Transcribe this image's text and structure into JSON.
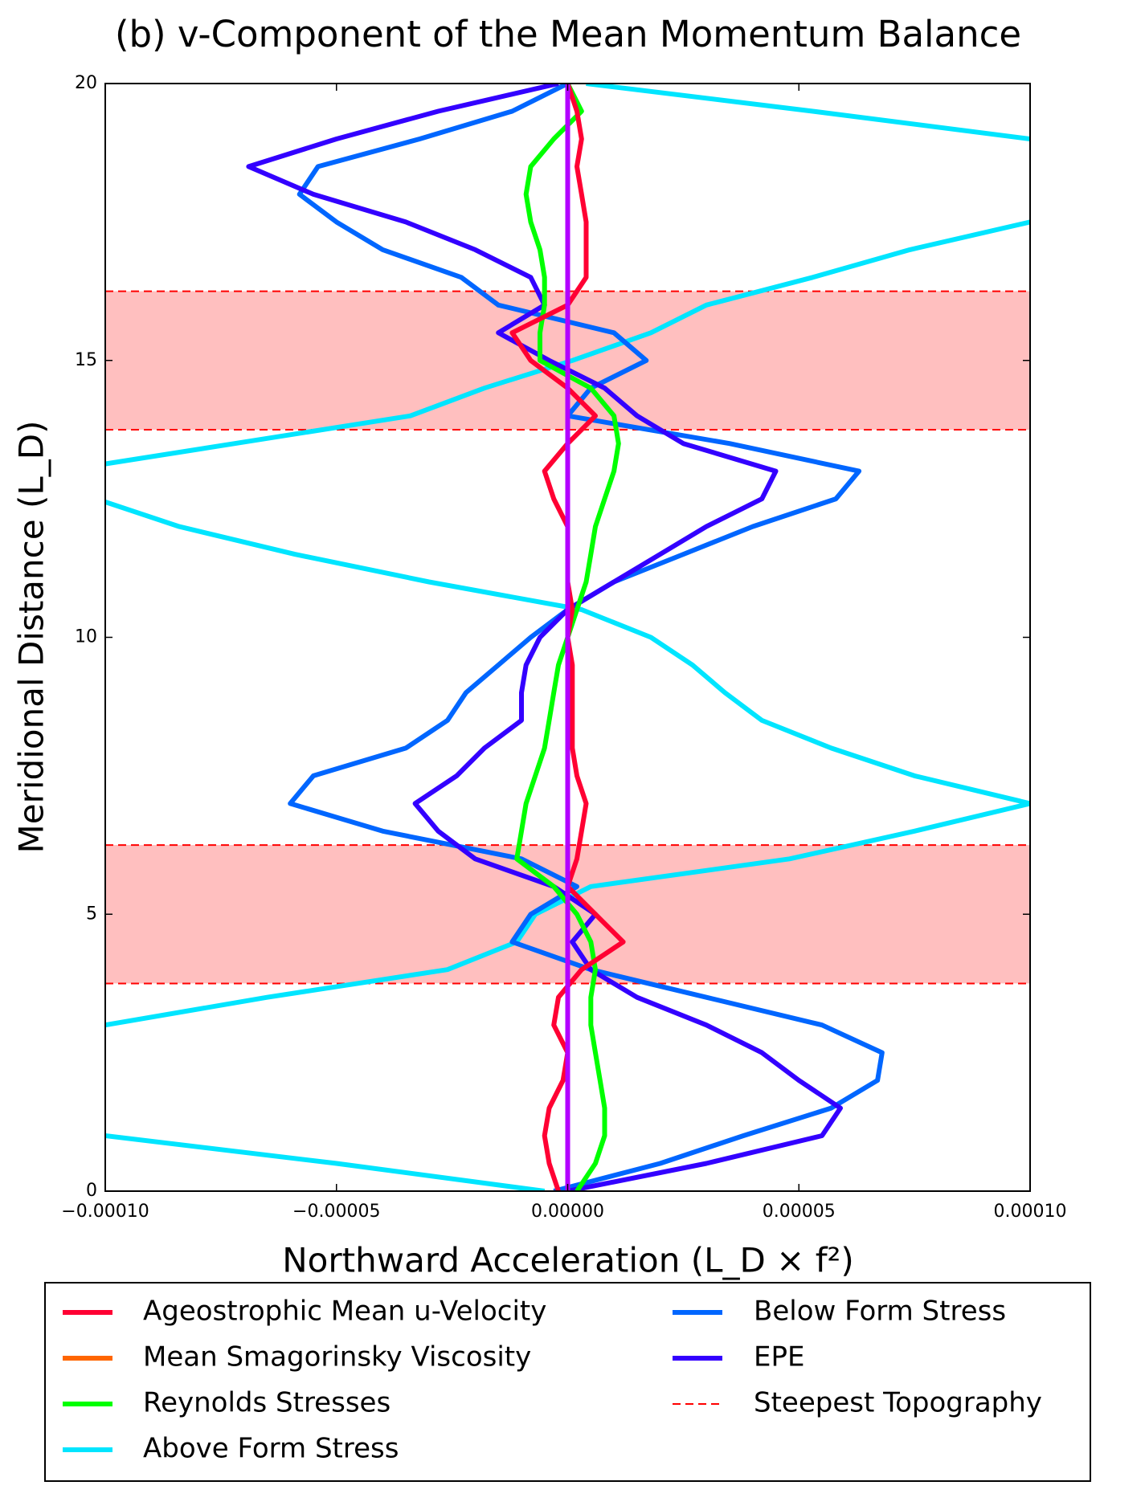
{
  "chart_data": {
    "type": "line",
    "orientation": "horizontal",
    "title": "(b) v-Component of the Mean Momentum Balance",
    "x_label": "Northward Acceleration (L_D × f²)",
    "y_label": "Meridional Distance (L_D)",
    "xlim": [
      -0.0001,
      0.0001
    ],
    "xticks": [
      {
        "value": -0.0001,
        "label": "−0.00010"
      },
      {
        "value": -5e-05,
        "label": "−0.00005"
      },
      {
        "value": 0,
        "label": "0.00000"
      },
      {
        "value": 5e-05,
        "label": "0.00005"
      },
      {
        "value": 0.0001,
        "label": "0.00010"
      }
    ],
    "ylim": [
      0,
      20
    ],
    "yticks": [
      0,
      5,
      10,
      15,
      20
    ],
    "y": [
      0,
      0.5,
      1,
      1.5,
      2,
      2.5,
      3,
      3.5,
      4,
      4.5,
      5,
      5.5,
      6,
      6.5,
      7,
      7.5,
      8,
      8.5,
      9,
      9.5,
      10,
      10.5,
      11,
      11.5,
      12,
      12.5,
      13,
      13.5,
      14,
      14.5,
      15,
      15.5,
      16,
      16.5,
      17,
      17.5,
      18,
      18.5,
      19,
      19.5,
      20
    ],
    "series": [
      {
        "name": "Above Form Stress",
        "color": "#00e5ff",
        "values": [
          -5e-06,
          -5e-05,
          -0.0001,
          -0.000115,
          -0.00012,
          -0.000115,
          -0.0001,
          -6.5e-05,
          -2.6e-05,
          -1.1e-05,
          -7e-06,
          5e-06,
          4.8e-05,
          7.5e-05,
          0.0001,
          7.5e-05,
          5.7e-05,
          4.2e-05,
          3.4e-05,
          2.7e-05,
          1.8e-05,
          3e-06,
          -3e-05,
          -5.9e-05,
          -8.4e-05,
          -0.000102,
          -0.00011,
          -7.2e-05,
          -3.4e-05,
          -1.8e-05,
          1e-06,
          1.8e-05,
          3e-05,
          5.3e-05,
          7.4e-05,
          0.0001,
          0.00011,
          0.00011,
          0.0001,
          5.3e-05,
          4e-06
        ]
      },
      {
        "name": "Below Form Stress",
        "color": "#0066ff",
        "values": [
          -3e-06,
          2e-05,
          3.8e-05,
          5.7e-05,
          6.7e-05,
          6.8e-05,
          5.5e-05,
          3e-05,
          5e-06,
          -1.2e-05,
          -8e-06,
          2e-06,
          -1e-05,
          -4e-05,
          -6e-05,
          -5.5e-05,
          -3.5e-05,
          -2.6e-05,
          -2.2e-05,
          -1.5e-05,
          -8e-06,
          0,
          1e-05,
          2.5e-05,
          4e-05,
          5.8e-05,
          6.3e-05,
          3.5e-05,
          0,
          5e-06,
          1.7e-05,
          1e-05,
          -1.5e-05,
          -2.3e-05,
          -4e-05,
          -5e-05,
          -5.8e-05,
          -5.4e-05,
          -3.2e-05,
          -1.2e-05,
          0
        ]
      },
      {
        "name": "EPE",
        "color": "#3300ff",
        "values": [
          0,
          3e-05,
          5.5e-05,
          5.9e-05,
          5e-05,
          4.2e-05,
          3e-05,
          1.5e-05,
          5e-06,
          1e-06,
          6e-06,
          -3e-06,
          -2e-05,
          -2.8e-05,
          -3.3e-05,
          -2.4e-05,
          -1.8e-05,
          -1e-05,
          -1e-05,
          -9e-06,
          -6e-06,
          0,
          1e-05,
          2e-05,
          3e-05,
          4.2e-05,
          4.5e-05,
          2.5e-05,
          1.5e-05,
          8e-06,
          -4e-06,
          -1.5e-05,
          -5e-06,
          -8e-06,
          -2e-05,
          -3.5e-05,
          -5.5e-05,
          -6.9e-05,
          -5e-05,
          -2.8e-05,
          -2e-06
        ]
      },
      {
        "name": "Reynolds Stresses",
        "color": "#00ff00",
        "values": [
          2e-06,
          6e-06,
          8e-06,
          8e-06,
          7e-06,
          6e-06,
          5e-06,
          5e-06,
          6e-06,
          5e-06,
          2e-06,
          -3e-06,
          -1.1e-05,
          -1e-05,
          -9e-06,
          -7e-06,
          -5e-06,
          -4e-06,
          -3e-06,
          -2e-06,
          0,
          2e-06,
          4e-06,
          5e-06,
          6e-06,
          8e-06,
          1e-05,
          1.1e-05,
          1e-05,
          5e-06,
          -6e-06,
          -6e-06,
          -5e-06,
          -5e-06,
          -6e-06,
          -8e-06,
          -9e-06,
          -8e-06,
          -3e-06,
          3e-06,
          0
        ]
      },
      {
        "name": "Ageostrophic Mean u-Velocity",
        "color": "#ff0033",
        "values": [
          -2e-06,
          -4e-06,
          -5e-06,
          -4e-06,
          -1e-06,
          0,
          -3e-06,
          -2e-06,
          3e-06,
          1.2e-05,
          6e-06,
          0,
          2e-06,
          3e-06,
          4e-06,
          2e-06,
          1e-06,
          1e-06,
          1e-06,
          1e-06,
          0,
          1e-06,
          0,
          0,
          0,
          -3e-06,
          -5e-06,
          0,
          6e-06,
          0,
          -8e-06,
          -1.2e-05,
          0,
          4e-06,
          4e-06,
          4e-06,
          3e-06,
          2e-06,
          3e-06,
          2e-06,
          0
        ]
      },
      {
        "name": "Mean Smagorinsky Viscosity",
        "color": "#ff6600",
        "values": [
          0,
          0,
          0,
          0,
          0,
          0,
          0,
          0,
          0,
          0,
          0,
          0,
          0,
          0,
          0,
          0,
          0,
          0,
          0,
          0,
          0,
          0,
          0,
          0,
          0,
          0,
          0,
          0,
          0,
          0,
          0,
          0,
          0,
          0,
          0,
          0,
          0,
          0,
          0,
          0,
          0
        ]
      },
      {
        "color": "#b300ff",
        "values": [
          0,
          0,
          0,
          0,
          0,
          0,
          0,
          0,
          0,
          0,
          0,
          0,
          0,
          0,
          0,
          0,
          0,
          0,
          0,
          0,
          0,
          0,
          0,
          0,
          0,
          0,
          0,
          0,
          0,
          0,
          0,
          0,
          0,
          0,
          0,
          0,
          0,
          0,
          0,
          0,
          0
        ]
      }
    ],
    "legend_order": [
      4,
      5,
      3,
      0,
      1,
      2
    ],
    "bands": {
      "name": "Steepest Topography",
      "color": "#ff0000",
      "ranges": [
        [
          3.75,
          6.25
        ],
        [
          13.75,
          16.25
        ]
      ]
    }
  }
}
